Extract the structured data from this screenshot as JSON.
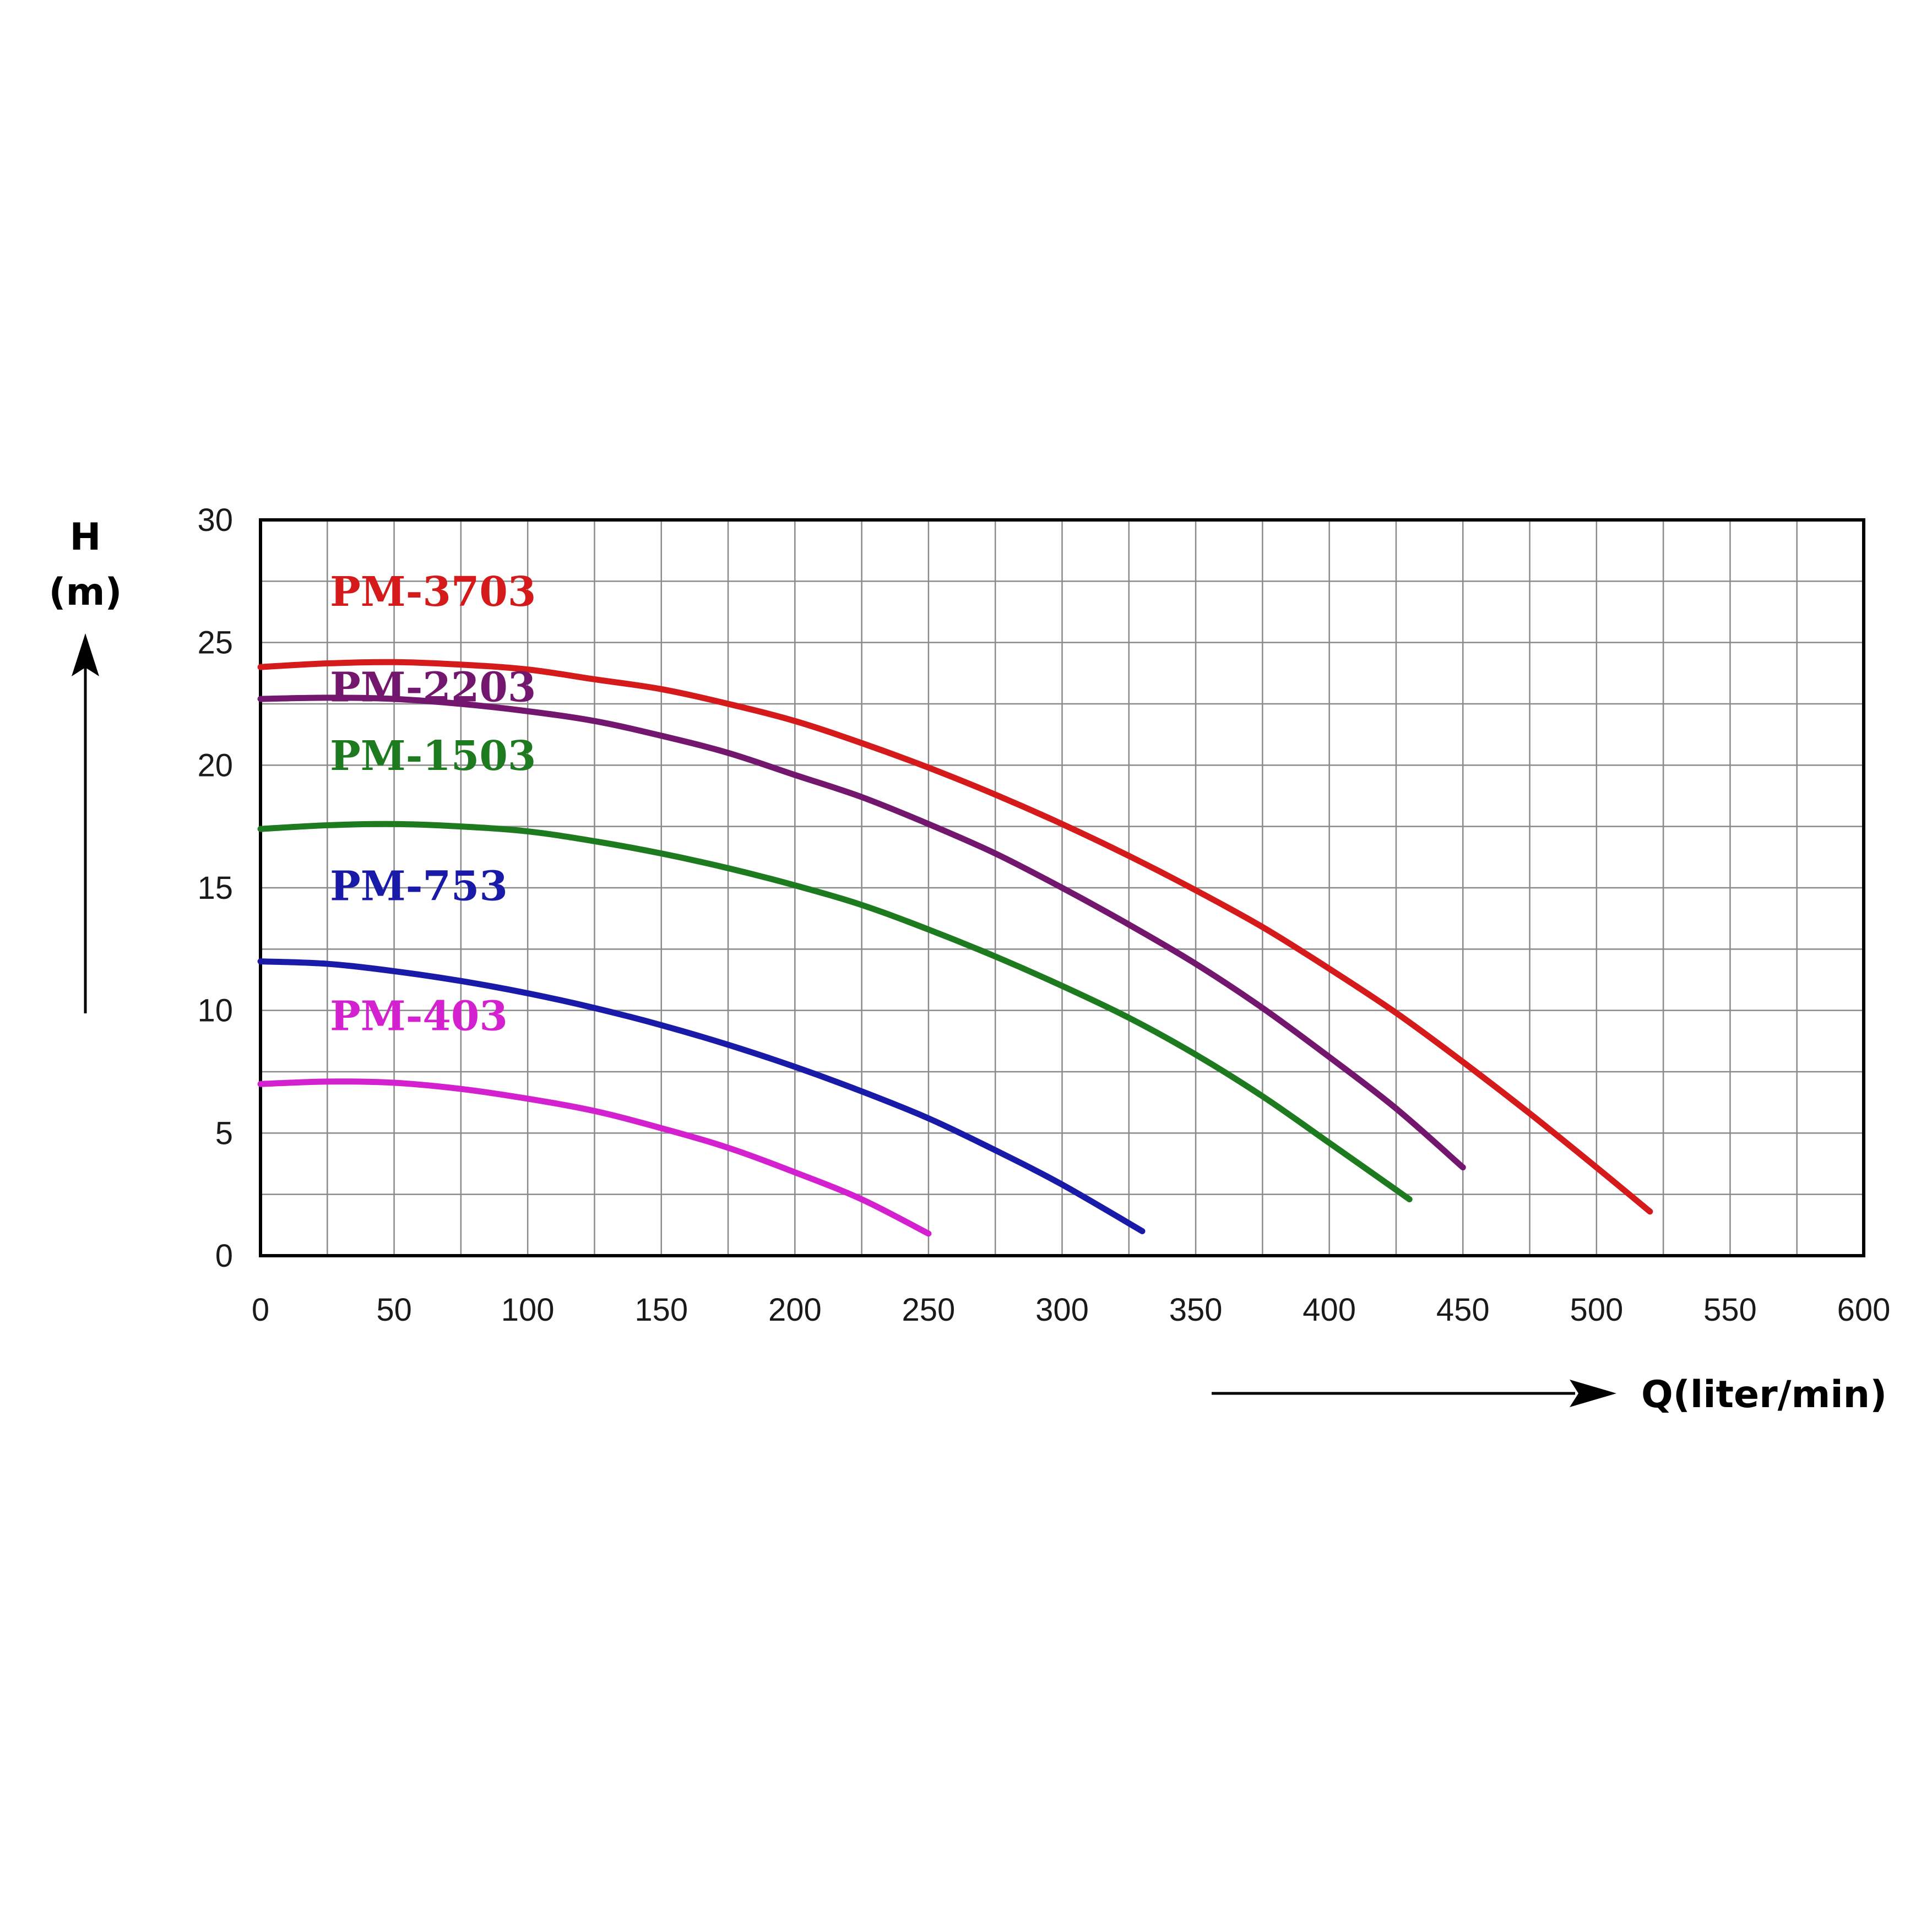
{
  "chart_data": {
    "type": "line",
    "title": "",
    "ylabel_line1": "H",
    "ylabel_line2": "(m)",
    "xlabel": "Q(liter/min)",
    "xlim": [
      0,
      600
    ],
    "ylim": [
      0,
      30
    ],
    "x_ticks": [
      "0",
      "50",
      "100",
      "150",
      "200",
      "250",
      "300",
      "350",
      "400",
      "450",
      "500",
      "550",
      "600"
    ],
    "y_ticks": [
      "0",
      "5",
      "10",
      "15",
      "20",
      "25",
      "30"
    ],
    "grid": true,
    "grid_x_step": 25,
    "grid_y_step": 2.5,
    "series": [
      {
        "name": "PM-3703",
        "color": "#d41a1a",
        "x": [
          0,
          25,
          50,
          75,
          100,
          125,
          150,
          175,
          200,
          225,
          250,
          275,
          300,
          325,
          350,
          375,
          400,
          425,
          450,
          475,
          500,
          520
        ],
        "y": [
          24.0,
          24.15,
          24.2,
          24.1,
          23.9,
          23.5,
          23.1,
          22.5,
          21.8,
          20.9,
          19.9,
          18.8,
          17.6,
          16.3,
          14.9,
          13.4,
          11.7,
          9.9,
          7.9,
          5.8,
          3.6,
          1.8
        ]
      },
      {
        "name": "PM-2203",
        "color": "#72166e",
        "x": [
          0,
          25,
          50,
          75,
          100,
          125,
          150,
          175,
          200,
          225,
          250,
          275,
          300,
          325,
          350,
          375,
          400,
          425,
          450
        ],
        "y": [
          22.7,
          22.75,
          22.7,
          22.5,
          22.2,
          21.8,
          21.2,
          20.5,
          19.6,
          18.7,
          17.6,
          16.4,
          15.0,
          13.5,
          11.9,
          10.1,
          8.1,
          6.0,
          3.6
        ]
      },
      {
        "name": "PM-1503",
        "color": "#1e7a1e",
        "x": [
          0,
          25,
          50,
          75,
          100,
          125,
          150,
          175,
          200,
          225,
          250,
          275,
          300,
          325,
          350,
          375,
          400,
          430
        ],
        "y": [
          17.4,
          17.55,
          17.6,
          17.5,
          17.3,
          16.9,
          16.4,
          15.8,
          15.1,
          14.3,
          13.3,
          12.2,
          11.0,
          9.7,
          8.2,
          6.5,
          4.6,
          2.3
        ]
      },
      {
        "name": "PM-753",
        "color": "#1a1aa8",
        "x": [
          0,
          25,
          50,
          75,
          100,
          125,
          150,
          175,
          200,
          225,
          250,
          275,
          300,
          330
        ],
        "y": [
          12.0,
          11.9,
          11.6,
          11.2,
          10.7,
          10.1,
          9.4,
          8.6,
          7.7,
          6.7,
          5.6,
          4.3,
          2.9,
          1.0
        ]
      },
      {
        "name": "PM-403",
        "color": "#d421cf",
        "x": [
          0,
          25,
          50,
          75,
          100,
          125,
          150,
          175,
          200,
          225,
          250
        ],
        "y": [
          7.0,
          7.1,
          7.05,
          6.8,
          6.4,
          5.9,
          5.2,
          4.4,
          3.4,
          2.3,
          0.9
        ]
      }
    ]
  }
}
